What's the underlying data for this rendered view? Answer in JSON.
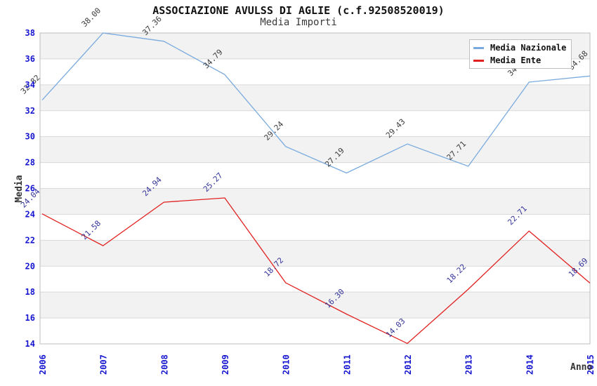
{
  "title": "ASSOCIAZIONE AVULSS DI AGLIE (c.f.92508520019)",
  "subtitle": "Media Importi",
  "chart_data": {
    "type": "line",
    "x": [
      "2006",
      "2007",
      "2008",
      "2009",
      "2010",
      "2011",
      "2012",
      "2013",
      "2014",
      "2015"
    ],
    "series": [
      {
        "name": "Media Nazionale",
        "color": "#7aabde",
        "label_color": "#3c3c3c",
        "values": [
          32.82,
          38.0,
          37.36,
          34.79,
          29.24,
          27.19,
          29.43,
          27.71,
          34.21,
          34.68
        ]
      },
      {
        "name": "Media Ente",
        "color": "#e02020",
        "label_color": "#333399",
        "values": [
          24.04,
          21.58,
          24.94,
          25.27,
          18.72,
          16.3,
          14.03,
          18.22,
          22.71,
          18.69
        ]
      }
    ],
    "xlabel": "Anno",
    "ylabel": "Media",
    "ylim": [
      14,
      38
    ],
    "ytick_step": 2,
    "grid": true,
    "bands": true,
    "legend_position": "top-right",
    "band_color": "#f2f2f2",
    "grid_color": "#d9d9d9",
    "border_color": "#bdbdbd",
    "tick_color": "#1515d0",
    "axis_title_color": "#333333"
  }
}
